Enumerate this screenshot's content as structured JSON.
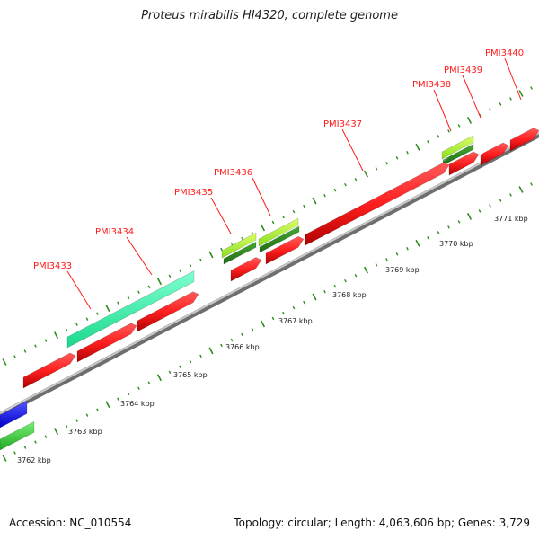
{
  "title": "Proteus mirabilis HI4320, complete genome",
  "footer": {
    "accession_label": "Accession:",
    "accession": "NC_010554",
    "topology_label": "Topology:",
    "topology": "circular",
    "length_label": "Length:",
    "length": "4,063,606 bp",
    "genes_label": "Genes:",
    "genes": "3,729"
  },
  "colors": {
    "backbone": "#909090",
    "forward_cds": "#ff1f1f",
    "reverse_cds": "#ff1f1f",
    "rna_gene": "#33ffaa",
    "tick": "#2e8b1e",
    "label": "#ff1a1a",
    "blue_feature": "#1a1aff",
    "green_feature": "#33cc33",
    "lime_feature": "#99ee33"
  },
  "axis": {
    "unit": "kbp",
    "ticks": [
      "3762 kbp",
      "3763 kbp",
      "3764 kbp",
      "3765 kbp",
      "3766 kbp",
      "3767 kbp",
      "3768 kbp",
      "3769 kbp",
      "3770 kbp",
      "3771 kbp"
    ]
  },
  "gene_labels": [
    "PMI3433",
    "PMI3434",
    "PMI3435",
    "PMI3436",
    "PMI3437",
    "PMI3438",
    "PMI3439",
    "PMI3440"
  ]
}
